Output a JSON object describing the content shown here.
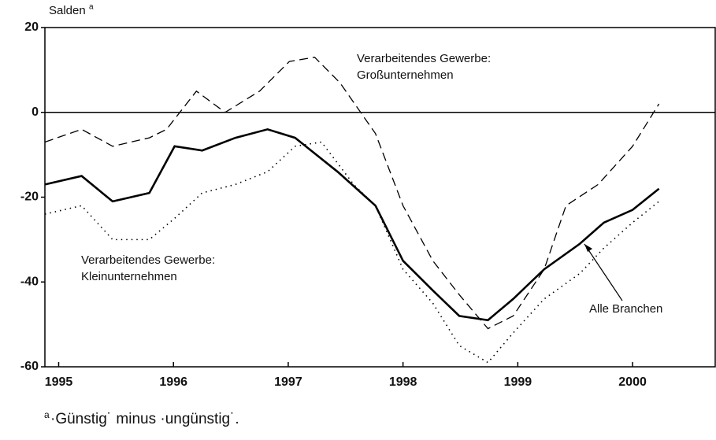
{
  "chart_data": {
    "type": "line",
    "y_axis_label": "Salden",
    "y_axis_label_note": "a",
    "footnote_mark": "a",
    "footnote": "·Günstig˙ minus ·ungünstig˙.",
    "xlim": [
      1994.88,
      2000.72
    ],
    "xticks": [
      1995,
      1996,
      1997,
      1998,
      1999,
      2000
    ],
    "ylim": [
      -60,
      20
    ],
    "yticks": [
      20,
      0,
      -20,
      -40,
      -60
    ],
    "series": [
      {
        "style": "solid",
        "color": "#000000",
        "x": [
          1994.88,
          1995.2,
          1995.47,
          1995.79,
          1996.01,
          1996.25,
          1996.54,
          1996.82,
          1997.06,
          1997.43,
          1997.76,
          1998.0,
          1998.26,
          1998.49,
          1998.74,
          1998.96,
          1999.23,
          1999.54,
          1999.75,
          2000.0,
          2000.23
        ],
        "values": [
          -17,
          -15,
          -21,
          -19,
          -8,
          -9,
          -6,
          -4,
          -6,
          -14,
          -22,
          -35,
          -42,
          -48,
          -49,
          -44,
          -37,
          -31,
          -26,
          -23,
          -18
        ]
      },
      {
        "style": "dashed",
        "color": "#000000",
        "x": [
          1994.88,
          1995.2,
          1995.47,
          1995.79,
          1995.94,
          1996.2,
          1996.45,
          1996.75,
          1997.01,
          1997.23,
          1997.45,
          1997.76,
          1998.0,
          1998.26,
          1998.49,
          1998.74,
          1998.96,
          1999.23,
          1999.42,
          1999.7,
          2000.0,
          2000.23
        ],
        "values": [
          -7,
          -4,
          -8,
          -6,
          -4,
          5,
          0,
          5,
          12,
          13,
          7,
          -5,
          -22,
          -35,
          -43,
          -51,
          -48,
          -37,
          -22,
          -17,
          -8,
          2
        ]
      },
      {
        "style": "dotted",
        "color": "#000000",
        "x": [
          1994.88,
          1995.2,
          1995.47,
          1995.79,
          1996.01,
          1996.25,
          1996.54,
          1996.82,
          1997.06,
          1997.29,
          1997.57,
          1997.76,
          1998.0,
          1998.26,
          1998.49,
          1998.74,
          1998.96,
          1999.23,
          1999.54,
          1999.75,
          2000.0,
          2000.23
        ],
        "values": [
          -24,
          -22,
          -30,
          -30,
          -25,
          -19,
          -17,
          -14,
          -8,
          -7,
          -17,
          -22,
          -37,
          -45,
          -55,
          -59,
          -52,
          -44,
          -38,
          -32,
          -26,
          -21
        ]
      }
    ],
    "annotations": [
      {
        "lines": [
          "Verarbeitendes Gewerbe:",
          "Großunternehmen"
        ]
      },
      {
        "lines": [
          "Verarbeitendes Gewerbe:",
          "Kleinunternehmen"
        ]
      },
      {
        "lines": [
          "Alle Branchen"
        ]
      }
    ]
  }
}
